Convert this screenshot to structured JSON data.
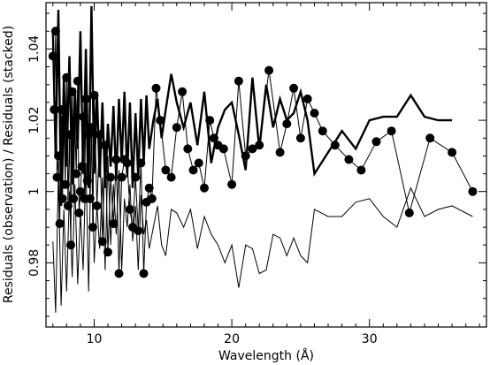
{
  "chart_data": {
    "type": "line",
    "title": "",
    "xlabel": "Wavelength (Å)",
    "ylabel": "Residuals (observation) / Residuals (stacked)",
    "xlim": [
      6.5,
      38.5
    ],
    "ylim": [
      0.962,
      1.053
    ],
    "xticks": [
      10,
      20,
      30
    ],
    "yticks": [
      0.98,
      1,
      1.02,
      1.04
    ],
    "yticks_labels": [
      "0.98",
      "1",
      "1.02",
      "1.04"
    ],
    "grid": false,
    "legend": "none",
    "series": [
      {
        "style": "thick-line",
        "x": [
          7.0,
          7.2,
          7.4,
          7.6,
          7.8,
          8.0,
          8.2,
          8.4,
          8.6,
          8.8,
          9.0,
          9.2,
          9.4,
          9.6,
          9.8,
          10.0,
          10.2,
          10.4,
          10.6,
          10.8,
          11.0,
          11.2,
          11.4,
          11.6,
          11.8,
          12.0,
          12.2,
          12.4,
          12.6,
          12.8,
          13.0,
          13.2,
          13.4,
          13.6,
          13.8,
          14.0,
          14.3,
          14.6,
          14.9,
          15.2,
          15.6,
          16.0,
          16.5,
          17.0,
          17.5,
          18.0,
          18.5,
          19.0,
          19.5,
          20.0,
          20.5,
          21.0,
          21.5,
          22.0,
          22.5,
          23.0,
          23.5,
          24.0,
          24.5,
          25.0,
          25.5,
          26.0,
          27.0,
          28.0,
          29.0,
          30.0,
          31.0,
          32.0,
          33.0,
          34.0,
          35.0,
          36.0
        ],
        "y": [
          1.045,
          1.01,
          1.051,
          0.996,
          1.032,
          1.007,
          1.038,
          1.002,
          1.029,
          1.012,
          1.045,
          1.005,
          1.04,
          1.001,
          1.052,
          1.005,
          1.028,
          1.004,
          1.025,
          1.001,
          1.019,
          1.007,
          1.024,
          1.003,
          1.026,
          1.008,
          1.028,
          1.004,
          1.025,
          1.001,
          1.022,
          1.004,
          1.026,
          1.008,
          1.027,
          1.012,
          1.02,
          1.026,
          1.015,
          1.023,
          1.033,
          1.025,
          1.018,
          1.025,
          1.013,
          1.028,
          1.008,
          1.018,
          1.023,
          1.025,
          1.016,
          1.006,
          1.032,
          1.012,
          1.03,
          1.018,
          1.026,
          1.02,
          1.022,
          1.028,
          1.02,
          1.005,
          1.011,
          1.017,
          1.012,
          1.02,
          1.021,
          1.021,
          1.027,
          1.021,
          1.02,
          1.02
        ]
      },
      {
        "style": "thin-line",
        "x": [
          7.0,
          7.2,
          7.4,
          7.6,
          7.8,
          8.0,
          8.2,
          8.4,
          8.6,
          8.8,
          9.0,
          9.2,
          9.4,
          9.6,
          9.8,
          10.0,
          10.2,
          10.4,
          10.6,
          10.8,
          11.0,
          11.2,
          11.4,
          11.6,
          11.8,
          12.0,
          12.2,
          12.4,
          12.6,
          12.8,
          13.0,
          13.2,
          13.4,
          13.6,
          13.8,
          14.0,
          14.3,
          14.6,
          14.9,
          15.2,
          15.6,
          16.0,
          16.5,
          17.0,
          17.5,
          18.0,
          18.5,
          19.0,
          19.5,
          20.0,
          20.5,
          21.0,
          21.5,
          22.0,
          22.5,
          23.0,
          23.5,
          24.0,
          24.5,
          25.0,
          25.5,
          26.0,
          27.0,
          28.0,
          29.0,
          30.0,
          31.0,
          32.0,
          33.0,
          34.0,
          35.0,
          36.0,
          37.5
        ],
        "y": [
          0.986,
          0.966,
          1.005,
          0.968,
          0.995,
          0.972,
          1.0,
          0.976,
          1.002,
          0.974,
          0.994,
          0.978,
          1.008,
          0.972,
          1.018,
          0.98,
          0.996,
          0.984,
          1.004,
          0.978,
          1.01,
          0.985,
          1.002,
          0.988,
          1.006,
          0.978,
          0.998,
          0.99,
          1.002,
          0.986,
          0.996,
          0.978,
          0.999,
          0.988,
          0.992,
          0.984,
          0.99,
          0.996,
          0.985,
          0.982,
          0.995,
          0.994,
          0.99,
          0.995,
          0.984,
          0.993,
          0.988,
          0.985,
          0.98,
          0.985,
          0.973,
          0.985,
          0.984,
          0.977,
          0.978,
          0.988,
          0.987,
          0.982,
          0.987,
          0.982,
          0.98,
          0.995,
          0.993,
          0.993,
          0.997,
          0.998,
          0.993,
          0.99,
          1.001,
          0.993,
          0.995,
          0.996,
          0.993
        ]
      },
      {
        "style": "line-with-dots",
        "x": [
          7.0,
          7.1,
          7.2,
          7.3,
          7.4,
          7.5,
          7.6,
          7.7,
          7.8,
          7.9,
          8.0,
          8.1,
          8.2,
          8.3,
          8.4,
          8.5,
          8.6,
          8.7,
          8.8,
          8.9,
          9.0,
          9.1,
          9.2,
          9.3,
          9.4,
          9.5,
          9.6,
          9.7,
          9.8,
          9.9,
          10.0,
          10.2,
          10.4,
          10.6,
          10.8,
          11.0,
          11.2,
          11.4,
          11.6,
          11.8,
          12.0,
          12.2,
          12.4,
          12.6,
          12.8,
          13.0,
          13.2,
          13.4,
          13.6,
          13.8,
          14.0,
          14.2,
          14.5,
          14.8,
          15.2,
          15.6,
          16.0,
          16.4,
          16.8,
          17.2,
          17.6,
          18.0,
          18.4,
          18.7,
          19.0,
          19.4,
          20.0,
          20.5,
          21.0,
          21.5,
          22.0,
          22.7,
          23.5,
          24.0,
          24.5,
          25.0,
          25.5,
          26.0,
          26.6,
          27.5,
          28.5,
          29.4,
          30.5,
          31.6,
          32.9,
          34.4,
          36.0,
          37.5
        ],
        "y": [
          1.038,
          1.023,
          1.045,
          1.004,
          1.01,
          0.991,
          1.023,
          0.998,
          1.02,
          1.002,
          1.032,
          0.996,
          1.016,
          0.985,
          1.028,
          0.998,
          1.02,
          1.005,
          1.031,
          0.994,
          1.0,
          1.007,
          1.021,
          0.998,
          1.026,
          1.003,
          1.016,
          0.998,
          1.018,
          0.99,
          1.027,
          0.996,
          1.016,
          0.986,
          1.013,
          0.983,
          1.004,
          0.991,
          1.009,
          0.977,
          1.004,
          1.009,
          1.008,
          0.995,
          0.99,
          1.004,
          0.989,
          1.008,
          0.977,
          0.997,
          1.001,
          0.998,
          1.029,
          1.02,
          1.006,
          1.004,
          1.018,
          1.028,
          1.012,
          1.006,
          1.008,
          1.001,
          1.02,
          1.015,
          1.013,
          1.012,
          1.002,
          1.031,
          1.01,
          1.012,
          1.013,
          1.034,
          1.011,
          1.019,
          1.029,
          1.015,
          1.026,
          1.022,
          1.017,
          1.013,
          1.009,
          1.006,
          1.014,
          1.017,
          0.994,
          1.015,
          1.011,
          1.0
        ]
      }
    ]
  }
}
